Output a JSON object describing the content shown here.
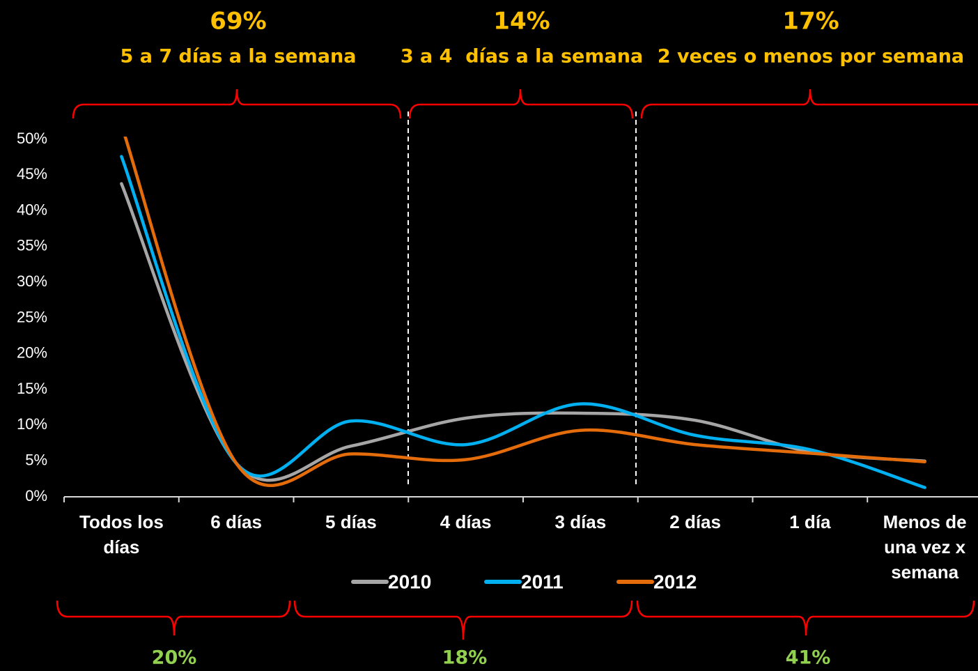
{
  "chart_data": {
    "type": "line",
    "categories": [
      "Todos los días",
      "6 días",
      "5 días",
      "4 días",
      "3 días",
      "2 días",
      "1 día",
      "Menos de una vez x semana"
    ],
    "series": [
      {
        "name": "2010",
        "color": "#a6a6a6",
        "values": [
          43.8,
          4.7,
          7.1,
          11.0,
          11.7,
          10.7,
          6.3,
          5.0
        ]
      },
      {
        "name": "2011",
        "color": "#00b0f0",
        "values": [
          47.6,
          4.7,
          10.6,
          7.3,
          13.0,
          8.6,
          6.6,
          1.3
        ]
      },
      {
        "name": "2012",
        "color": "#e46c0a",
        "values": [
          52,
          4.7,
          6.0,
          5.2,
          9.3,
          7.3,
          6.1,
          4.9
        ]
      }
    ],
    "ylim": [
      0,
      50
    ],
    "yticks": [
      {
        "value": 0,
        "label": "0%"
      },
      {
        "value": 5,
        "label": "5%"
      },
      {
        "value": 10,
        "label": "10%"
      },
      {
        "value": 15,
        "label": "15%"
      },
      {
        "value": 20,
        "label": "20%"
      },
      {
        "value": 25,
        "label": "25%"
      },
      {
        "value": 30,
        "label": "30%"
      },
      {
        "value": 35,
        "label": "35%"
      },
      {
        "value": 40,
        "label": "40%"
      },
      {
        "value": 45,
        "label": "45%"
      },
      {
        "value": 50,
        "label": "50%"
      }
    ],
    "legend": "bottom",
    "top_groups": [
      {
        "percent": "69%",
        "label": "5 a 7 días a la semana"
      },
      {
        "percent": "14%",
        "label": "3 a 4  días a la semana"
      },
      {
        "percent": "17%",
        "label": "2 veces o menos por semana"
      }
    ],
    "bottom_groups": [
      "20%",
      "18%",
      "41%"
    ]
  }
}
